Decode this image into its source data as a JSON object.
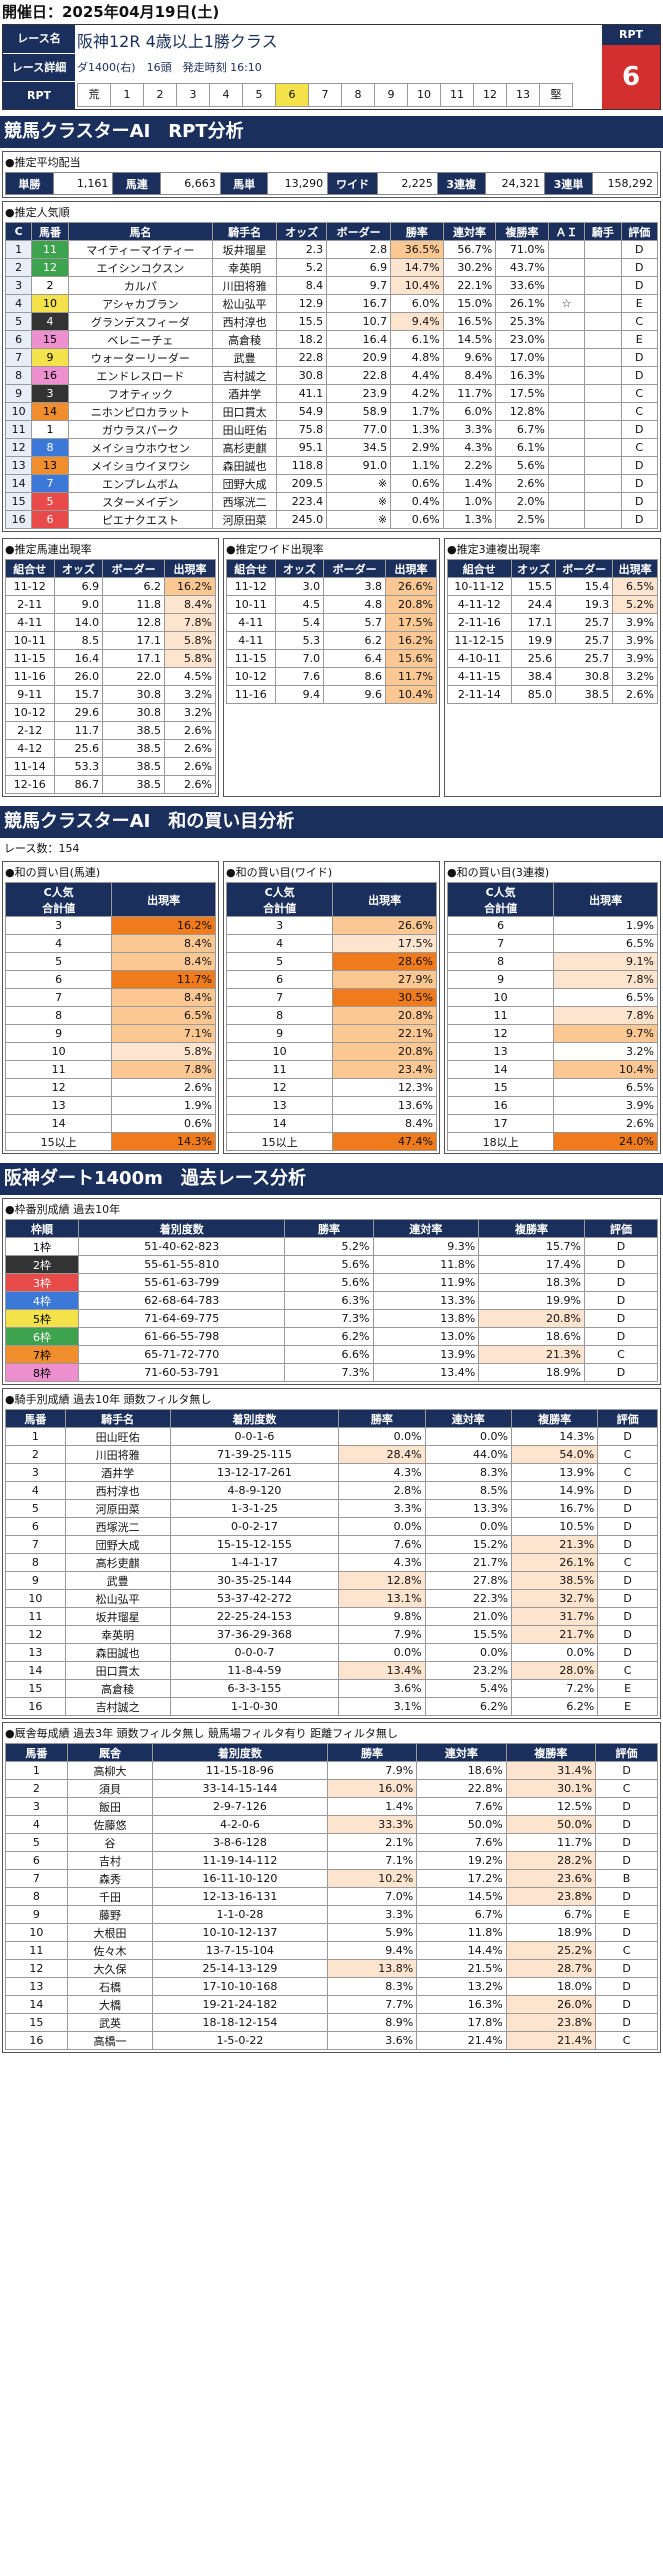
{
  "header": {
    "date": "開催日：2025年04月19日(土)"
  },
  "race": {
    "name_label": "レース名",
    "detail_label": "レース詳細",
    "rpt_label": "RPT",
    "name": "阪神12R 4歳以上1勝クラス",
    "detail": "ダ1400(右)　16頭　発走時刻 16:10",
    "rpt_head": "RPT",
    "rpt_value": "6",
    "gates": [
      "荒",
      "1",
      "2",
      "3",
      "4",
      "5",
      "6",
      "7",
      "8",
      "9",
      "10",
      "11",
      "12",
      "13",
      "堅"
    ],
    "active_gate": "6"
  },
  "sec_rpt": "競馬クラスターAI　RPT分析",
  "payout": {
    "title": "●推定平均配当",
    "items": [
      {
        "k": "単勝",
        "v": "1,161"
      },
      {
        "k": "馬連",
        "v": "6,663"
      },
      {
        "k": "馬単",
        "v": "13,290"
      },
      {
        "k": "ワイド",
        "v": "2,225"
      },
      {
        "k": "3連複",
        "v": "24,321"
      },
      {
        "k": "3連単",
        "v": "158,292"
      }
    ]
  },
  "pop": {
    "title": "●推定人気順",
    "cols": [
      "C",
      "馬番",
      "馬名",
      "騎手名",
      "オッズ",
      "ボーダー",
      "勝率",
      "連対率",
      "複勝率",
      "ＡＩ",
      "騎手",
      "評価"
    ],
    "rows": [
      [
        "1",
        "11",
        "マイティーマイティー",
        "坂井瑠星",
        "2.3",
        "2.8",
        "36.5%",
        "56.7%",
        "71.0%",
        "",
        "",
        "D"
      ],
      [
        "2",
        "12",
        "エイシンコクスン",
        "幸英明",
        "5.2",
        "6.9",
        "14.7%",
        "30.2%",
        "43.7%",
        "",
        "",
        "D"
      ],
      [
        "3",
        "2",
        "カルパ",
        "川田将雅",
        "8.4",
        "9.7",
        "10.4%",
        "22.1%",
        "33.6%",
        "",
        "",
        "D"
      ],
      [
        "4",
        "10",
        "アシャカブラン",
        "松山弘平",
        "12.9",
        "16.7",
        "6.0%",
        "15.0%",
        "26.1%",
        "☆",
        "",
        "E"
      ],
      [
        "5",
        "4",
        "グランデスフィーダ",
        "西村淳也",
        "15.5",
        "10.7",
        "9.4%",
        "16.5%",
        "25.3%",
        "",
        "",
        "C"
      ],
      [
        "6",
        "15",
        "ベレニーチェ",
        "高倉稜",
        "18.2",
        "16.4",
        "6.1%",
        "14.5%",
        "23.0%",
        "",
        "",
        "E"
      ],
      [
        "7",
        "9",
        "ウォーターリーダー",
        "武豊",
        "22.8",
        "20.9",
        "4.8%",
        "9.6%",
        "17.0%",
        "",
        "",
        "D"
      ],
      [
        "8",
        "16",
        "エンドレスロード",
        "吉村誠之",
        "30.8",
        "22.8",
        "4.4%",
        "8.4%",
        "16.3%",
        "",
        "",
        "D"
      ],
      [
        "9",
        "3",
        "フオティック",
        "酒井学",
        "41.1",
        "23.9",
        "4.2%",
        "11.7%",
        "17.5%",
        "",
        "",
        "C"
      ],
      [
        "10",
        "14",
        "ニホンピロカラット",
        "田口貫太",
        "54.9",
        "58.9",
        "1.7%",
        "6.0%",
        "12.8%",
        "",
        "",
        "C"
      ],
      [
        "11",
        "1",
        "ガウラスパーク",
        "田山旺佑",
        "75.8",
        "77.0",
        "1.3%",
        "3.3%",
        "6.7%",
        "",
        "",
        "D"
      ],
      [
        "12",
        "8",
        "メイショウホウセン",
        "高杉吏麒",
        "95.1",
        "34.5",
        "2.9%",
        "4.3%",
        "6.1%",
        "",
        "",
        "C"
      ],
      [
        "13",
        "13",
        "メイショウイヌワシ",
        "森田誠也",
        "118.8",
        "91.0",
        "1.1%",
        "2.2%",
        "5.6%",
        "",
        "",
        "D"
      ],
      [
        "14",
        "7",
        "エンプレムボム",
        "団野大成",
        "209.5",
        "※",
        "0.6%",
        "1.4%",
        "2.6%",
        "",
        "",
        "D"
      ],
      [
        "15",
        "5",
        "スターメイデン",
        "西塚洸二",
        "223.4",
        "※",
        "0.4%",
        "1.0%",
        "2.0%",
        "",
        "",
        "D"
      ],
      [
        "16",
        "6",
        "ピエナクエスト",
        "河原田菜",
        "245.0",
        "※",
        "0.6%",
        "1.3%",
        "2.5%",
        "",
        "",
        "D"
      ]
    ]
  },
  "tri_umaren": {
    "title": "●推定馬連出現率",
    "cols": [
      "組合せ",
      "オッズ",
      "ボーダー",
      "出現率"
    ],
    "rows": [
      [
        "11-12",
        "6.9",
        "6.2",
        "16.2%"
      ],
      [
        "2-11",
        "9.0",
        "11.8",
        "8.4%"
      ],
      [
        "4-11",
        "14.0",
        "12.8",
        "7.8%"
      ],
      [
        "10-11",
        "8.5",
        "17.1",
        "5.8%"
      ],
      [
        "11-15",
        "16.4",
        "17.1",
        "5.8%"
      ],
      [
        "11-16",
        "26.0",
        "22.0",
        "4.5%"
      ],
      [
        "9-11",
        "15.7",
        "30.8",
        "3.2%"
      ],
      [
        "10-12",
        "29.6",
        "30.8",
        "3.2%"
      ],
      [
        "2-12",
        "11.7",
        "38.5",
        "2.6%"
      ],
      [
        "4-12",
        "25.6",
        "38.5",
        "2.6%"
      ],
      [
        "11-14",
        "53.3",
        "38.5",
        "2.6%"
      ],
      [
        "12-16",
        "86.7",
        "38.5",
        "2.6%"
      ]
    ]
  },
  "tri_wide": {
    "title": "●推定ワイド出現率",
    "cols": [
      "組合せ",
      "オッズ",
      "ボーダー",
      "出現率"
    ],
    "rows": [
      [
        "11-12",
        "3.0",
        "3.8",
        "26.6%"
      ],
      [
        "10-11",
        "4.5",
        "4.8",
        "20.8%"
      ],
      [
        "4-11",
        "5.4",
        "5.7",
        "17.5%"
      ],
      [
        "4-11",
        "5.3",
        "6.2",
        "16.2%"
      ],
      [
        "11-15",
        "7.0",
        "6.4",
        "15.6%"
      ],
      [
        "10-12",
        "7.6",
        "8.6",
        "11.7%"
      ],
      [
        "11-16",
        "9.4",
        "9.6",
        "10.4%"
      ]
    ]
  },
  "tri_3fuku": {
    "title": "●推定3連複出現率",
    "cols": [
      "組合せ",
      "オッズ",
      "ボーダー",
      "出現率"
    ],
    "rows": [
      [
        "10-11-12",
        "15.5",
        "15.4",
        "6.5%"
      ],
      [
        "4-11-12",
        "24.4",
        "19.3",
        "5.2%"
      ],
      [
        "2-11-16",
        "17.1",
        "25.7",
        "3.9%"
      ],
      [
        "11-12-15",
        "19.9",
        "25.7",
        "3.9%"
      ],
      [
        "4-10-11",
        "25.6",
        "25.7",
        "3.9%"
      ],
      [
        "4-11-15",
        "38.4",
        "30.8",
        "3.2%"
      ],
      [
        "2-11-14",
        "85.0",
        "38.5",
        "2.6%"
      ]
    ]
  },
  "sec_combo": "競馬クラスターAI　和の買い目分析",
  "race_count": "レース数：154",
  "combo_umaren": {
    "title": "●和の買い目(馬連)",
    "h1": "C人気",
    "h2": "合計値",
    "h3": "出現率",
    "rows": [
      [
        "3",
        "16.2%"
      ],
      [
        "4",
        "8.4%"
      ],
      [
        "5",
        "8.4%"
      ],
      [
        "6",
        "11.7%"
      ],
      [
        "7",
        "8.4%"
      ],
      [
        "8",
        "6.5%"
      ],
      [
        "9",
        "7.1%"
      ],
      [
        "10",
        "5.8%"
      ],
      [
        "11",
        "7.8%"
      ],
      [
        "12",
        "2.6%"
      ],
      [
        "13",
        "1.9%"
      ],
      [
        "14",
        "0.6%"
      ],
      [
        "15以上",
        "14.3%"
      ]
    ]
  },
  "combo_wide": {
    "title": "●和の買い目(ワイド)",
    "h1": "C人気",
    "h2": "合計値",
    "h3": "出現率",
    "rows": [
      [
        "3",
        "26.6%"
      ],
      [
        "4",
        "17.5%"
      ],
      [
        "5",
        "28.6%"
      ],
      [
        "6",
        "27.9%"
      ],
      [
        "7",
        "30.5%"
      ],
      [
        "8",
        "20.8%"
      ],
      [
        "9",
        "22.1%"
      ],
      [
        "10",
        "20.8%"
      ],
      [
        "11",
        "23.4%"
      ],
      [
        "12",
        "12.3%"
      ],
      [
        "13",
        "13.6%"
      ],
      [
        "14",
        "8.4%"
      ],
      [
        "15以上",
        "47.4%"
      ]
    ]
  },
  "combo_3fuku": {
    "title": "●和の買い目(3連複)",
    "h1": "C人気",
    "h2": "合計値",
    "h3": "出現率",
    "rows": [
      [
        "6",
        "1.9%"
      ],
      [
        "7",
        "6.5%"
      ],
      [
        "8",
        "9.1%"
      ],
      [
        "9",
        "7.8%"
      ],
      [
        "10",
        "6.5%"
      ],
      [
        "11",
        "7.8%"
      ],
      [
        "12",
        "9.7%"
      ],
      [
        "13",
        "3.2%"
      ],
      [
        "14",
        "10.4%"
      ],
      [
        "15",
        "6.5%"
      ],
      [
        "16",
        "3.9%"
      ],
      [
        "17",
        "2.6%"
      ],
      [
        "18以上",
        "24.0%"
      ]
    ]
  },
  "sec_past": "阪神ダート1400m　過去レース分析",
  "waku": {
    "title": "●枠番別成績 過去10年",
    "cols": [
      "枠順",
      "着別度数",
      "勝率",
      "連対率",
      "複勝率",
      "評価"
    ],
    "rows": [
      [
        "1枠",
        "51-40-62-823",
        "5.2%",
        "9.3%",
        "15.7%",
        "D"
      ],
      [
        "2枠",
        "55-61-55-810",
        "5.6%",
        "11.8%",
        "17.4%",
        "D"
      ],
      [
        "3枠",
        "55-61-63-799",
        "5.6%",
        "11.9%",
        "18.3%",
        "D"
      ],
      [
        "4枠",
        "62-68-64-783",
        "6.3%",
        "13.3%",
        "19.9%",
        "D"
      ],
      [
        "5枠",
        "71-64-69-775",
        "7.3%",
        "13.8%",
        "20.8%",
        "D"
      ],
      [
        "6枠",
        "61-66-55-798",
        "6.2%",
        "13.0%",
        "18.6%",
        "D"
      ],
      [
        "7枠",
        "65-71-72-770",
        "6.6%",
        "13.9%",
        "21.3%",
        "C"
      ],
      [
        "8枠",
        "71-60-53-791",
        "7.3%",
        "13.4%",
        "18.9%",
        "D"
      ]
    ]
  },
  "jockey": {
    "title": "●騎手別成績 過去10年 頭数フィルタ無し",
    "cols": [
      "馬番",
      "騎手名",
      "着別度数",
      "勝率",
      "連対率",
      "複勝率",
      "評価"
    ],
    "rows": [
      [
        "1",
        "田山旺佑",
        "0-0-1-6",
        "0.0%",
        "0.0%",
        "14.3%",
        "D"
      ],
      [
        "2",
        "川田将雅",
        "71-39-25-115",
        "28.4%",
        "44.0%",
        "54.0%",
        "C"
      ],
      [
        "3",
        "酒井学",
        "13-12-17-261",
        "4.3%",
        "8.3%",
        "13.9%",
        "C"
      ],
      [
        "4",
        "西村淳也",
        "4-8-9-120",
        "2.8%",
        "8.5%",
        "14.9%",
        "D"
      ],
      [
        "5",
        "河原田菜",
        "1-3-1-25",
        "3.3%",
        "13.3%",
        "16.7%",
        "D"
      ],
      [
        "6",
        "西塚洸二",
        "0-0-2-17",
        "0.0%",
        "0.0%",
        "10.5%",
        "D"
      ],
      [
        "7",
        "団野大成",
        "15-15-12-155",
        "7.6%",
        "15.2%",
        "21.3%",
        "D"
      ],
      [
        "8",
        "高杉吏麒",
        "1-4-1-17",
        "4.3%",
        "21.7%",
        "26.1%",
        "C"
      ],
      [
        "9",
        "武豊",
        "30-35-25-144",
        "12.8%",
        "27.8%",
        "38.5%",
        "D"
      ],
      [
        "10",
        "松山弘平",
        "53-37-42-272",
        "13.1%",
        "22.3%",
        "32.7%",
        "D"
      ],
      [
        "11",
        "坂井瑠星",
        "22-25-24-153",
        "9.8%",
        "21.0%",
        "31.7%",
        "D"
      ],
      [
        "12",
        "幸英明",
        "37-36-29-368",
        "7.9%",
        "15.5%",
        "21.7%",
        "D"
      ],
      [
        "13",
        "森田誠也",
        "0-0-0-7",
        "0.0%",
        "0.0%",
        "0.0%",
        "D"
      ],
      [
        "14",
        "田口貫太",
        "11-8-4-59",
        "13.4%",
        "23.2%",
        "28.0%",
        "C"
      ],
      [
        "15",
        "高倉稜",
        "6-3-3-155",
        "3.6%",
        "5.4%",
        "7.2%",
        "E"
      ],
      [
        "16",
        "吉村誠之",
        "1-1-0-30",
        "3.1%",
        "6.2%",
        "6.2%",
        "E"
      ]
    ]
  },
  "trainer": {
    "title": "●厩舎毎成績 過去3年 頭数フィルタ無し 競馬場フィルタ有り 距離フィルタ無し",
    "cols": [
      "馬番",
      "厩舎",
      "着別度数",
      "勝率",
      "連対率",
      "複勝率",
      "評価"
    ],
    "rows": [
      [
        "1",
        "高柳大",
        "11-15-18-96",
        "7.9%",
        "18.6%",
        "31.4%",
        "D"
      ],
      [
        "2",
        "須貝",
        "33-14-15-144",
        "16.0%",
        "22.8%",
        "30.1%",
        "C"
      ],
      [
        "3",
        "飯田",
        "2-9-7-126",
        "1.4%",
        "7.6%",
        "12.5%",
        "D"
      ],
      [
        "4",
        "佐藤悠",
        "4-2-0-6",
        "33.3%",
        "50.0%",
        "50.0%",
        "D"
      ],
      [
        "5",
        "谷",
        "3-8-6-128",
        "2.1%",
        "7.6%",
        "11.7%",
        "D"
      ],
      [
        "6",
        "吉村",
        "11-19-14-112",
        "7.1%",
        "19.2%",
        "28.2%",
        "D"
      ],
      [
        "7",
        "森秀",
        "16-11-10-120",
        "10.2%",
        "17.2%",
        "23.6%",
        "B"
      ],
      [
        "8",
        "千田",
        "12-13-16-131",
        "7.0%",
        "14.5%",
        "23.8%",
        "D"
      ],
      [
        "9",
        "藤野",
        "1-1-0-28",
        "3.3%",
        "6.7%",
        "6.7%",
        "E"
      ],
      [
        "10",
        "大根田",
        "10-10-12-137",
        "5.9%",
        "11.8%",
        "18.9%",
        "D"
      ],
      [
        "11",
        "佐々木",
        "13-7-15-104",
        "9.4%",
        "14.4%",
        "25.2%",
        "C"
      ],
      [
        "12",
        "大久保",
        "25-14-13-129",
        "13.8%",
        "21.5%",
        "28.7%",
        "D"
      ],
      [
        "13",
        "石橋",
        "17-10-10-168",
        "8.3%",
        "13.2%",
        "18.0%",
        "D"
      ],
      [
        "14",
        "大橋",
        "19-21-24-182",
        "7.7%",
        "16.3%",
        "26.0%",
        "D"
      ],
      [
        "15",
        "武英",
        "18-18-12-154",
        "8.9%",
        "17.8%",
        "23.8%",
        "D"
      ],
      [
        "16",
        "高橋一",
        "1-5-0-22",
        "3.6%",
        "21.4%",
        "21.4%",
        "C"
      ]
    ]
  },
  "colors": {
    "navy": "#1a2f5c",
    "red": "#d32f2f",
    "orange": "#f07b1c"
  }
}
